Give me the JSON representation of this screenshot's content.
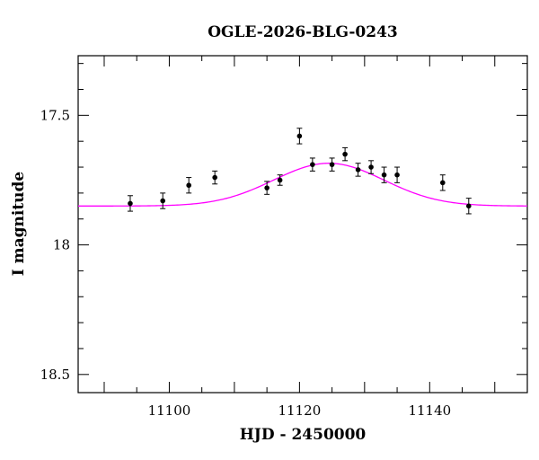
{
  "chart_data": {
    "type": "scatter",
    "title": "OGLE-2026-BLG-0243",
    "xlabel": "HJD - 2450000",
    "ylabel": "I magnitude",
    "xlim": [
      11086,
      11155
    ],
    "ylim": [
      18.57,
      17.27
    ],
    "y_inverted": true,
    "x_ticks": [
      11100,
      11120,
      11140
    ],
    "x_tick_labels": [
      "11100",
      "11120",
      "11140"
    ],
    "y_ticks": [
      17.5,
      18,
      18.5
    ],
    "y_tick_labels": [
      "17.5",
      "18",
      "18.5"
    ],
    "grid": false,
    "colors": {
      "points": "#000000",
      "model": "#ff00ff",
      "frame": "#000000"
    },
    "series": [
      {
        "kind": "points_with_errorbars",
        "x": [
          11094,
          11099,
          11103,
          11107,
          11115,
          11117,
          11120,
          11122,
          11125,
          11127,
          11129,
          11131,
          11133,
          11135,
          11142,
          11146
        ],
        "y": [
          17.84,
          17.83,
          17.77,
          17.74,
          17.78,
          17.75,
          17.58,
          17.69,
          17.69,
          17.65,
          17.71,
          17.7,
          17.73,
          17.73,
          17.76,
          17.85
        ],
        "err": [
          0.03,
          0.03,
          0.03,
          0.025,
          0.025,
          0.02,
          0.03,
          0.025,
          0.025,
          0.025,
          0.025,
          0.025,
          0.03,
          0.03,
          0.03,
          0.03
        ]
      },
      {
        "kind": "model_curve",
        "baseline_mag": 17.85,
        "peak_mag": 17.685,
        "t0": 11124.5,
        "width": 12
      }
    ]
  }
}
